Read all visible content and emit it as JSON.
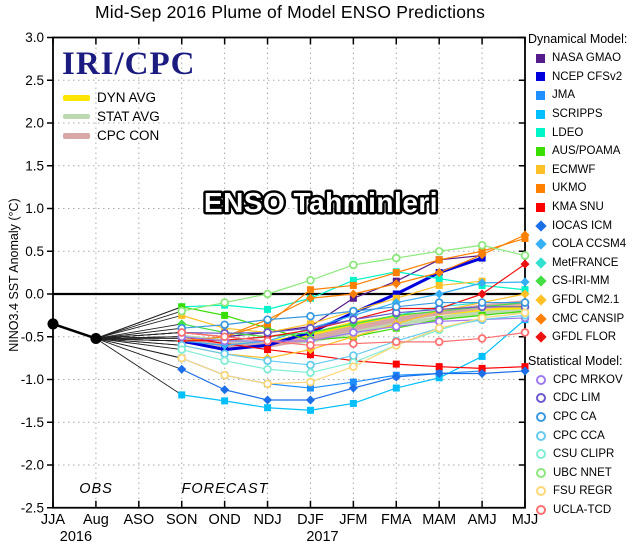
{
  "title": "Mid-Sep 2016 Plume of Model ENSO Predictions",
  "branding": {
    "logo": "IRI/CPC",
    "logo_color": "#1b1b80"
  },
  "overlay_text": "ENSO Tahminleri",
  "axis": {
    "ylabel": "NINO3.4 SST Anomaly (°C)",
    "obs_label": "OBS",
    "forecast_label": "FORECAST",
    "year_left": "2016",
    "year_right": "2017"
  },
  "legend": {
    "dynamical_header": "Dynamical Model:",
    "statistical_header": "Statistical Model:"
  },
  "chart_data": {
    "type": "line",
    "title": "Mid-Sep 2016 Plume of Model ENSO Predictions",
    "xlabel": "",
    "ylabel": "NINO3.4 SST Anomaly (°C)",
    "ylim": [
      -2.5,
      3.0
    ],
    "ytick_step": 0.5,
    "grid": "dotted",
    "x_categories": [
      "JJA",
      "Aug",
      "ASO",
      "SON",
      "OND",
      "NDJ",
      "DJF",
      "JFM",
      "FMA",
      "MAM",
      "AMJ",
      "MJJ"
    ],
    "x_years": [
      {
        "label": "2016",
        "x_index": 1
      },
      {
        "label": "2017",
        "x_index": 6
      }
    ],
    "observations": {
      "label": "OBS",
      "color": "#000000",
      "points": [
        {
          "x": "JJA",
          "y": -0.35
        },
        {
          "x": "Aug",
          "y": -0.52
        }
      ]
    },
    "forecast_start_category": "SON",
    "forecast_categories": [
      "SON",
      "OND",
      "NDJ",
      "DJF",
      "JFM",
      "FMA",
      "MAM",
      "AMJ",
      "MJJ"
    ],
    "series": [
      {
        "name": "DYN AVG",
        "group": "average",
        "color": "#ffe600",
        "marker": "none",
        "width": 5,
        "values": [
          -0.52,
          -0.58,
          -0.58,
          -0.48,
          -0.35,
          -0.28,
          -0.22,
          -0.18,
          -0.15
        ]
      },
      {
        "name": "STAT AVG",
        "group": "average",
        "color": "#bcd9b0",
        "marker": "none",
        "width": 4,
        "values": [
          -0.5,
          -0.55,
          -0.58,
          -0.55,
          -0.45,
          -0.35,
          -0.28,
          -0.22,
          -0.2
        ]
      },
      {
        "name": "CPC CON",
        "group": "average",
        "color": "#d8a8a8",
        "marker": "none",
        "width": 5,
        "values": [
          -0.55,
          -0.6,
          -0.6,
          -0.52,
          -0.4,
          -0.3,
          -0.22,
          -0.15,
          -0.1
        ]
      },
      {
        "name": "NASA GMAO",
        "group": "dynamical",
        "color": "#551a8b",
        "marker": "square",
        "width": 1.2,
        "values": [
          -0.45,
          -0.5,
          -0.45,
          -0.38,
          -0.05,
          0.15,
          0.4,
          0.45,
          null
        ]
      },
      {
        "name": "NCEP CFSv2",
        "group": "dynamical",
        "color": "#0000dd",
        "marker": "square",
        "width": 3,
        "values": [
          -0.55,
          -0.65,
          -0.6,
          -0.45,
          -0.22,
          0.0,
          0.25,
          0.42,
          null
        ]
      },
      {
        "name": "JMA",
        "group": "dynamical",
        "color": "#1e90ff",
        "marker": "square",
        "width": 1.2,
        "values": [
          -0.75,
          -0.95,
          -1.05,
          -1.1,
          -1.03,
          -0.95,
          -0.93,
          -0.9,
          null
        ]
      },
      {
        "name": "SCRIPPS",
        "group": "dynamical",
        "color": "#00bfff",
        "marker": "square",
        "width": 1.2,
        "values": [
          -1.18,
          -1.25,
          -1.33,
          -1.36,
          -1.28,
          -1.1,
          -0.98,
          -0.73,
          -0.3
        ]
      },
      {
        "name": "LDEO",
        "group": "dynamical",
        "color": "#00f5c8",
        "marker": "square",
        "width": 1.2,
        "values": [
          -0.15,
          -0.13,
          -0.18,
          -0.05,
          0.16,
          0.26,
          0.18,
          0.1,
          0.05
        ]
      },
      {
        "name": "AUS/POAMA",
        "group": "dynamical",
        "color": "#3adf00",
        "marker": "square",
        "width": 1.2,
        "values": [
          -0.15,
          -0.25,
          -0.4,
          -0.54,
          -0.5,
          -0.4,
          -0.3,
          -0.25,
          -0.2
        ]
      },
      {
        "name": "ECMWF",
        "group": "dynamical",
        "color": "#ffc125",
        "marker": "square",
        "width": 1.2,
        "values": [
          -0.25,
          -0.4,
          -0.45,
          -0.35,
          -0.2,
          -0.05,
          0.1,
          0.15,
          null
        ]
      },
      {
        "name": "UKMO",
        "group": "dynamical",
        "color": "#ff8000",
        "marker": "square",
        "width": 1.2,
        "values": [
          -0.45,
          -0.5,
          -0.35,
          0.05,
          0.1,
          0.25,
          0.4,
          0.5,
          0.65
        ]
      },
      {
        "name": "KMA SNU",
        "group": "dynamical",
        "color": "#ff0000",
        "marker": "square",
        "width": 1.2,
        "values": [
          -0.5,
          -0.58,
          -0.65,
          -0.71,
          -0.78,
          -0.82,
          -0.85,
          -0.87,
          -0.85
        ]
      },
      {
        "name": "IOCAS ICM",
        "group": "dynamical",
        "color": "#1c6fe8",
        "marker": "diamond",
        "width": 1.2,
        "values": [
          -0.88,
          -1.12,
          -1.24,
          -1.24,
          -1.1,
          -0.97,
          -0.93,
          -0.93,
          -0.9
        ]
      },
      {
        "name": "COLA CCSM4",
        "group": "dynamical",
        "color": "#35aff5",
        "marker": "diamond",
        "width": 1.2,
        "values": [
          -0.55,
          -0.6,
          -0.55,
          -0.4,
          -0.25,
          -0.1,
          0.0,
          0.13,
          0.14
        ]
      },
      {
        "name": "MetFRANCE",
        "group": "dynamical",
        "color": "#30e0d0",
        "marker": "diamond",
        "width": 1.2,
        "values": [
          -0.5,
          -0.55,
          -0.5,
          -0.45,
          -0.35,
          -0.25,
          -0.15,
          -0.1,
          null
        ]
      },
      {
        "name": "CS-IRI-MM",
        "group": "dynamical",
        "color": "#44dd44",
        "marker": "diamond",
        "width": 1.2,
        "values": [
          -0.35,
          -0.45,
          -0.5,
          -0.45,
          -0.35,
          -0.25,
          -0.2,
          -0.15,
          -0.1
        ]
      },
      {
        "name": "GFDL CM2.1",
        "group": "dynamical",
        "color": "#ffc125",
        "marker": "diamond",
        "width": 1.2,
        "values": [
          -0.6,
          -0.7,
          -0.75,
          -0.65,
          -0.5,
          -0.35,
          -0.2,
          -0.1,
          0.0
        ]
      },
      {
        "name": "CMC CANSIP",
        "group": "dynamical",
        "color": "#ff8000",
        "marker": "diamond",
        "width": 1.2,
        "values": [
          -0.55,
          -0.5,
          -0.3,
          -0.05,
          0.0,
          0.12,
          0.25,
          0.46,
          0.69
        ]
      },
      {
        "name": "GFDL FLOR",
        "group": "dynamical",
        "color": "#ee1111",
        "marker": "diamond",
        "width": 1.2,
        "values": [
          -0.55,
          -0.54,
          -0.5,
          -0.42,
          -0.3,
          -0.17,
          -0.17,
          0.0,
          0.35
        ]
      },
      {
        "name": "CPC MRKOV",
        "group": "statistical",
        "color": "#9f79ee",
        "marker": "circle-open",
        "width": 1.2,
        "values": [
          -0.5,
          -0.55,
          -0.55,
          -0.55,
          -0.45,
          -0.38,
          -0.32,
          -0.3,
          -0.28
        ]
      },
      {
        "name": "CDC LIM",
        "group": "statistical",
        "color": "#6a5acd",
        "marker": "circle-open",
        "width": 1.2,
        "values": [
          -0.45,
          -0.46,
          -0.45,
          -0.4,
          -0.3,
          -0.22,
          -0.18,
          -0.15,
          -0.15
        ]
      },
      {
        "name": "CPC CA",
        "group": "statistical",
        "color": "#3a9ae0",
        "marker": "circle-open",
        "width": 1.2,
        "values": [
          -0.4,
          -0.36,
          -0.3,
          -0.26,
          -0.2,
          -0.15,
          -0.1,
          -0.1,
          -0.1
        ]
      },
      {
        "name": "CPC CCA",
        "group": "statistical",
        "color": "#66ccee",
        "marker": "circle-open",
        "width": 1.2,
        "values": [
          -0.6,
          -0.7,
          -0.78,
          -0.83,
          -0.72,
          -0.55,
          -0.4,
          -0.3,
          -0.25
        ]
      },
      {
        "name": "CSU CLIPR",
        "group": "statistical",
        "color": "#7feed4",
        "marker": "circle-open",
        "width": 1.2,
        "values": [
          -0.65,
          -0.78,
          -0.88,
          -0.92,
          -0.8,
          -0.6,
          -0.42,
          -0.28,
          -0.22
        ]
      },
      {
        "name": "UBC NNET",
        "group": "statistical",
        "color": "#8ce87c",
        "marker": "circle-open",
        "width": 1.2,
        "values": [
          -0.2,
          -0.1,
          0.0,
          0.16,
          0.34,
          0.42,
          0.5,
          0.57,
          0.45
        ]
      },
      {
        "name": "FSU REGR",
        "group": "statistical",
        "color": "#ffd778",
        "marker": "circle-open",
        "width": 1.2,
        "values": [
          -0.75,
          -0.95,
          -1.05,
          -1.03,
          -0.85,
          -0.6,
          -0.4,
          -0.28,
          -0.22
        ]
      },
      {
        "name": "UCLA-TCD",
        "group": "statistical",
        "color": "#ff7070",
        "marker": "circle-open",
        "width": 1.2,
        "values": [
          -0.45,
          -0.5,
          -0.55,
          -0.6,
          -0.58,
          -0.56,
          -0.56,
          -0.52,
          -0.45
        ]
      }
    ]
  }
}
